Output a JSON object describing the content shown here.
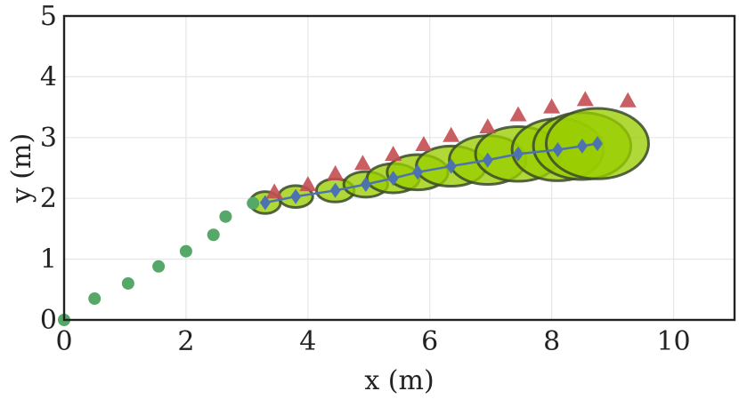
{
  "chart_data": {
    "type": "scatter",
    "xlabel": "x (m)",
    "ylabel": "y (m)",
    "xlim": [
      0,
      11
    ],
    "ylim": [
      0,
      5
    ],
    "xticks": [
      "0",
      "2",
      "4",
      "6",
      "8",
      "10"
    ],
    "yticks": [
      "0",
      "1",
      "2",
      "3",
      "4",
      "5"
    ],
    "grid": true,
    "series": [
      {
        "marker": "circle",
        "color": "#55a868",
        "points": [
          [
            0.0,
            0.0
          ],
          [
            0.5,
            0.35
          ],
          [
            1.05,
            0.6
          ],
          [
            1.55,
            0.88
          ],
          [
            2.0,
            1.13
          ],
          [
            2.45,
            1.4
          ],
          [
            2.65,
            1.7
          ],
          [
            3.1,
            1.92
          ]
        ]
      },
      {
        "marker": "triangle",
        "color": "#c44e52",
        "points": [
          [
            3.45,
            2.1
          ],
          [
            4.0,
            2.22
          ],
          [
            4.45,
            2.4
          ],
          [
            4.9,
            2.57
          ],
          [
            5.4,
            2.72
          ],
          [
            5.9,
            2.88
          ],
          [
            6.35,
            3.03
          ],
          [
            6.95,
            3.17
          ],
          [
            7.45,
            3.37
          ],
          [
            8.0,
            3.5
          ],
          [
            8.55,
            3.62
          ],
          [
            9.25,
            3.6
          ]
        ]
      },
      {
        "marker": "diamond",
        "line": true,
        "color": "#4c72b0",
        "points": [
          [
            3.3,
            1.93
          ],
          [
            3.8,
            2.03
          ],
          [
            4.45,
            2.13
          ],
          [
            4.95,
            2.23
          ],
          [
            5.4,
            2.33
          ],
          [
            5.8,
            2.43
          ],
          [
            6.35,
            2.53
          ],
          [
            6.95,
            2.63
          ],
          [
            7.45,
            2.73
          ],
          [
            8.1,
            2.8
          ],
          [
            8.5,
            2.86
          ],
          [
            8.75,
            2.9
          ]
        ]
      },
      {
        "marker": "ellipse",
        "color": "#9acd00",
        "edge": "#3a4a2a",
        "ellipses": [
          {
            "cx": 3.3,
            "cy": 1.93,
            "w": 0.5,
            "h": 0.36
          },
          {
            "cx": 3.8,
            "cy": 2.03,
            "w": 0.56,
            "h": 0.36
          },
          {
            "cx": 4.45,
            "cy": 2.13,
            "w": 0.62,
            "h": 0.38
          },
          {
            "cx": 4.95,
            "cy": 2.23,
            "w": 0.72,
            "h": 0.42
          },
          {
            "cx": 5.4,
            "cy": 2.33,
            "w": 0.86,
            "h": 0.48
          },
          {
            "cx": 5.8,
            "cy": 2.43,
            "w": 1.0,
            "h": 0.58
          },
          {
            "cx": 6.35,
            "cy": 2.53,
            "w": 1.14,
            "h": 0.66
          },
          {
            "cx": 6.95,
            "cy": 2.63,
            "w": 1.26,
            "h": 0.8
          },
          {
            "cx": 7.45,
            "cy": 2.73,
            "w": 1.4,
            "h": 0.9
          },
          {
            "cx": 8.1,
            "cy": 2.8,
            "w": 1.5,
            "h": 1.02
          },
          {
            "cx": 8.5,
            "cy": 2.86,
            "w": 1.6,
            "h": 1.1
          },
          {
            "cx": 8.75,
            "cy": 2.9,
            "w": 1.68,
            "h": 1.16
          }
        ]
      }
    ]
  }
}
